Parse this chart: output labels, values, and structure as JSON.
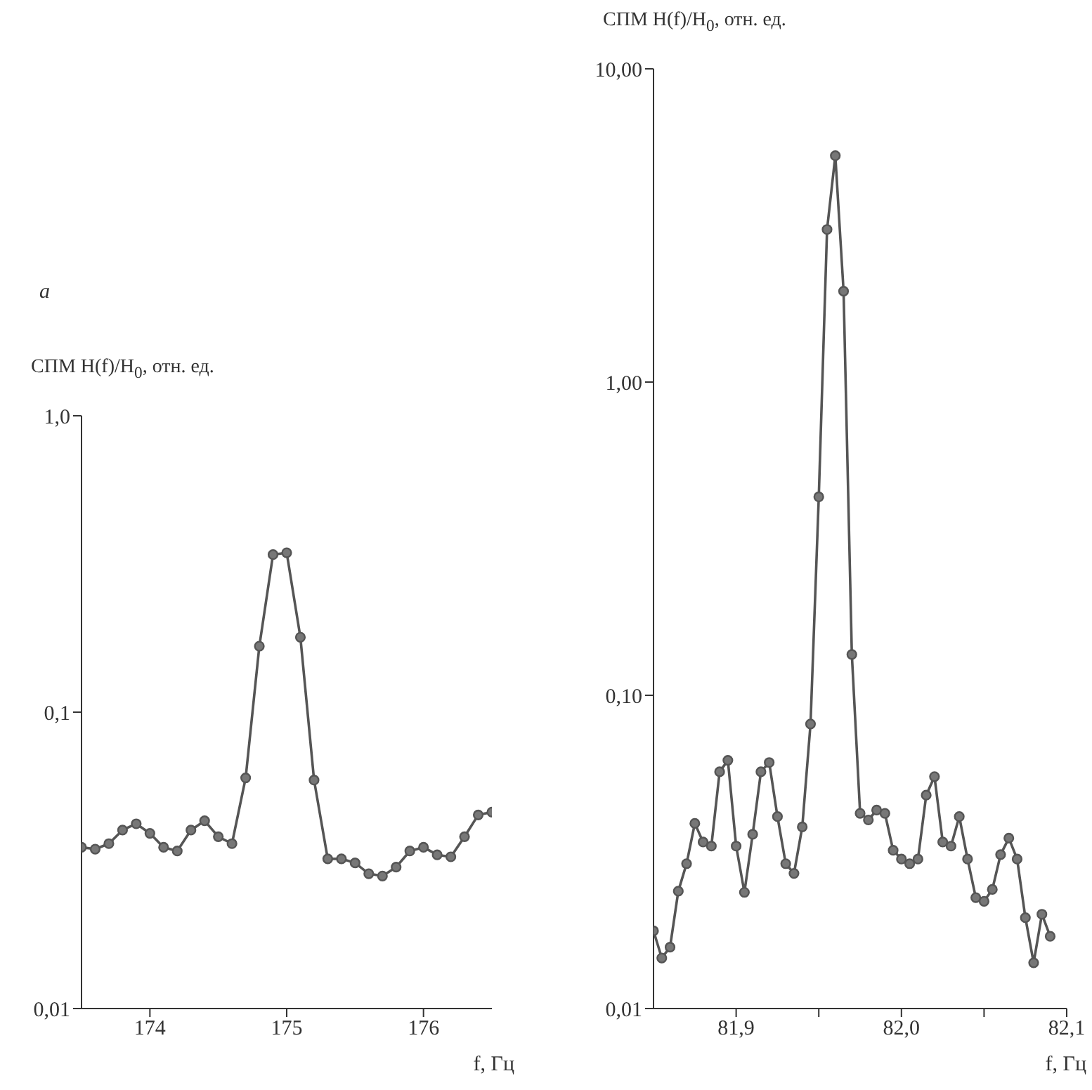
{
  "chart_data": [
    {
      "type": "line",
      "annotations": [
        "a"
      ],
      "ylabel": "СПМ H(f)/H$_{0}$, отн. ед.",
      "xlabel": "f, Гц",
      "log": "y",
      "marker": "circle",
      "grid": false,
      "xlim": [
        173.5,
        176.5
      ],
      "xticks": [
        174,
        175,
        176
      ],
      "ylim": [
        0.01,
        1
      ],
      "yticks": [
        {
          "value": 0.01,
          "label": "0,01"
        },
        {
          "value": 0.1,
          "label": "0,1"
        },
        {
          "value": 1,
          "label": "1,0"
        }
      ],
      "x": [
        173.5,
        173.6,
        173.7,
        173.8,
        173.9,
        174.0,
        174.1,
        174.2,
        174.3,
        174.4,
        174.5,
        174.6,
        174.7,
        174.8,
        174.9,
        175.0,
        175.1,
        175.2,
        175.3,
        175.4,
        175.5,
        175.6,
        175.7,
        175.8,
        175.9,
        176.0,
        176.1,
        176.2,
        176.3,
        176.4,
        176.5
      ],
      "series": [
        {
          "color": "#555555",
          "values": [
            0.035,
            0.0345,
            0.036,
            0.04,
            0.042,
            0.039,
            0.035,
            0.034,
            0.04,
            0.043,
            0.038,
            0.036,
            0.06,
            0.167,
            0.34,
            0.345,
            0.179,
            0.059,
            0.032,
            0.032,
            0.031,
            0.0285,
            0.028,
            0.03,
            0.034,
            0.035,
            0.033,
            0.0325,
            0.038,
            0.045,
            0.046
          ]
        }
      ]
    },
    {
      "type": "line",
      "ylabel": "СПМ H(f)/H$_{0}$, отн. ед.",
      "xlabel": "f, Гц",
      "log": "y",
      "marker": "circle",
      "grid": false,
      "xlim": [
        81.85,
        82.1
      ],
      "xticks": [
        {
          "value": 81.9,
          "label": "81,9"
        },
        {
          "value": 81.95,
          "label": null
        },
        {
          "value": 82.0,
          "label": "82,0"
        },
        {
          "value": 82.05,
          "label": null
        },
        {
          "value": 82.1,
          "label": "82,1"
        }
      ],
      "ylim": [
        0.01,
        10
      ],
      "yticks": [
        {
          "value": 0.01,
          "label": "0,01"
        },
        {
          "value": 0.1,
          "label": "0,10"
        },
        {
          "value": 1,
          "label": "1,00"
        },
        {
          "value": 10,
          "label": "10,00"
        }
      ],
      "x": [
        81.85,
        81.855,
        81.86,
        81.865,
        81.87,
        81.875,
        81.88,
        81.885,
        81.89,
        81.895,
        81.9,
        81.905,
        81.91,
        81.915,
        81.92,
        81.925,
        81.93,
        81.935,
        81.94,
        81.945,
        81.95,
        81.955,
        81.96,
        81.965,
        81.97,
        81.975,
        81.98,
        81.985,
        81.99,
        81.995,
        82.0,
        82.005,
        82.01,
        82.015,
        82.02,
        82.025,
        82.03,
        82.035,
        82.04,
        82.045,
        82.05,
        82.055,
        82.06,
        82.065,
        82.07,
        82.075,
        82.08,
        82.085,
        82.09
      ],
      "series": [
        {
          "color": "#555555",
          "values": [
            0.0177,
            0.0145,
            0.0157,
            0.0237,
            0.029,
            0.039,
            0.034,
            0.033,
            0.057,
            0.062,
            0.033,
            0.0235,
            0.036,
            0.057,
            0.061,
            0.041,
            0.029,
            0.027,
            0.038,
            0.081,
            0.43,
            3.07,
            5.28,
            1.95,
            0.135,
            0.042,
            0.04,
            0.043,
            0.042,
            0.032,
            0.03,
            0.029,
            0.03,
            0.048,
            0.055,
            0.034,
            0.033,
            0.041,
            0.03,
            0.0226,
            0.022,
            0.024,
            0.031,
            0.035,
            0.03,
            0.0195,
            0.014,
            0.02,
            0.017
          ]
        }
      ]
    }
  ]
}
